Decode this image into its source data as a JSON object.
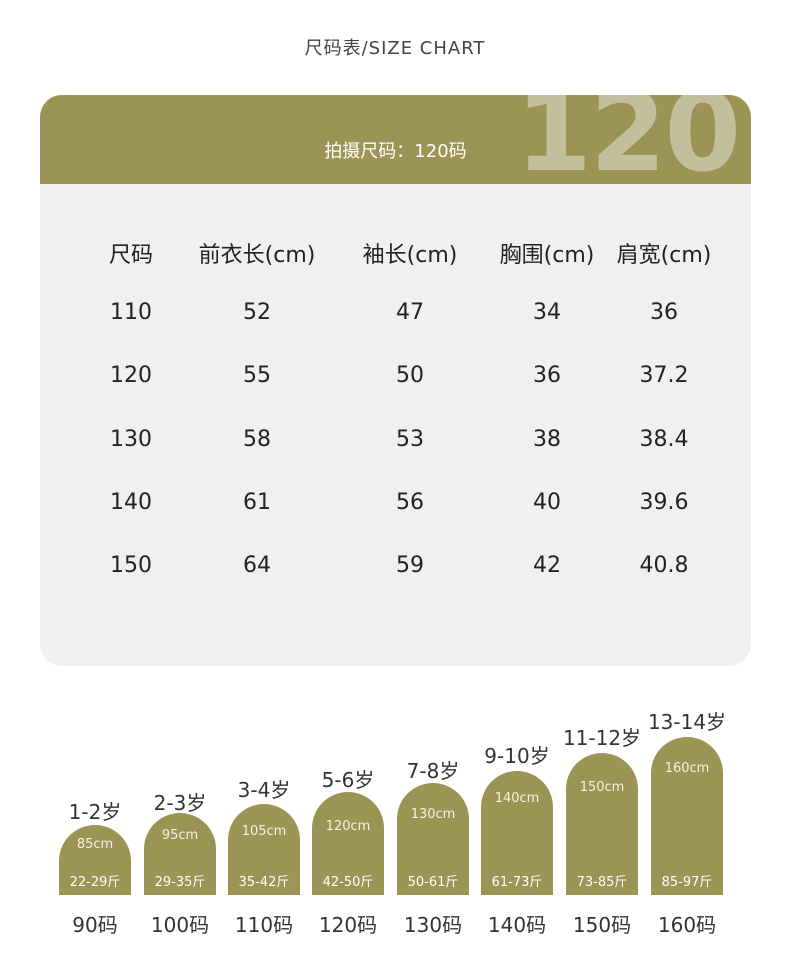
{
  "page_title": "尺码表/SIZE CHART",
  "header": {
    "big_number": "120",
    "shooting_size": "拍摄尺码：120码"
  },
  "table": {
    "columns": [
      "尺码",
      "前衣长(cm)",
      "袖长(cm)",
      "胸围(cm)",
      "肩宽(cm)"
    ],
    "rows": [
      [
        "110",
        "52",
        "47",
        "34",
        "36"
      ],
      [
        "120",
        "55",
        "50",
        "36",
        "37.2"
      ],
      [
        "130",
        "58",
        "53",
        "38",
        "38.4"
      ],
      [
        "140",
        "61",
        "56",
        "40",
        "39.6"
      ],
      [
        "150",
        "64",
        "59",
        "42",
        "40.8"
      ]
    ]
  },
  "size_guide": [
    {
      "age": "1-2岁",
      "height": "85cm",
      "weight": "22-29斤",
      "size": "90码"
    },
    {
      "age": "2-3岁",
      "height": "95cm",
      "weight": "29-35斤",
      "size": "100码"
    },
    {
      "age": "3-4岁",
      "height": "105cm",
      "weight": "35-42斤",
      "size": "110码"
    },
    {
      "age": "5-6岁",
      "height": "120cm",
      "weight": "42-50斤",
      "size": "120码"
    },
    {
      "age": "7-8岁",
      "height": "130cm",
      "weight": "50-61斤",
      "size": "130码"
    },
    {
      "age": "9-10岁",
      "height": "140cm",
      "weight": "61-73斤",
      "size": "140码"
    },
    {
      "age": "11-12岁",
      "height": "150cm",
      "weight": "73-85斤",
      "size": "150码"
    },
    {
      "age": "13-14岁",
      "height": "160cm",
      "weight": "85-97斤",
      "size": "160码"
    }
  ],
  "colors": {
    "accent": "#9c9454",
    "card_bg": "#f0f0f0",
    "watermark": "#c3bf9c"
  }
}
